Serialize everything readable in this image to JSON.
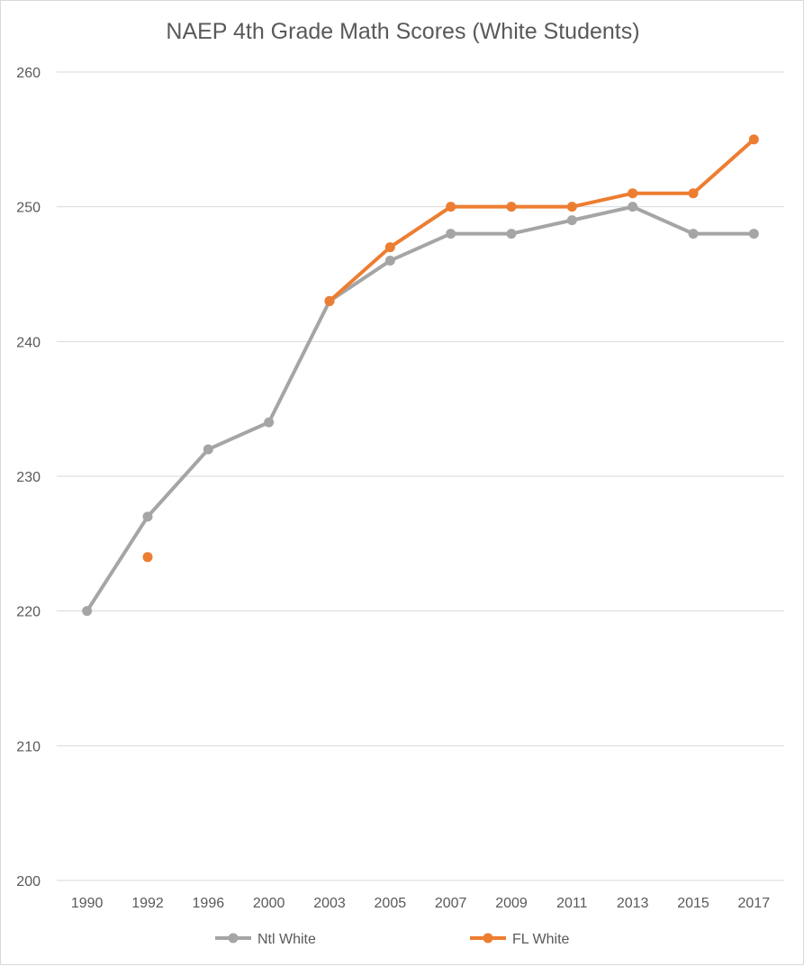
{
  "chart_data": {
    "type": "line",
    "title": "NAEP 4th Grade Math Scores (White Students)",
    "xlabel": "",
    "ylabel": "",
    "categories": [
      "1990",
      "1992",
      "1996",
      "2000",
      "2003",
      "2005",
      "2007",
      "2009",
      "2011",
      "2013",
      "2015",
      "2017"
    ],
    "ylim": [
      200,
      260
    ],
    "yticks": [
      200,
      210,
      220,
      230,
      240,
      250,
      260
    ],
    "grid": true,
    "legend_position": "bottom",
    "series": [
      {
        "name": "Ntl White",
        "color": "#a5a5a5",
        "values": [
          220,
          227,
          232,
          234,
          243,
          246,
          248,
          248,
          249,
          250,
          248,
          248
        ]
      },
      {
        "name": "FL White",
        "color": "#ed7d31",
        "values": [
          null,
          224,
          null,
          null,
          243,
          247,
          250,
          250,
          250,
          251,
          251,
          255
        ]
      }
    ]
  }
}
